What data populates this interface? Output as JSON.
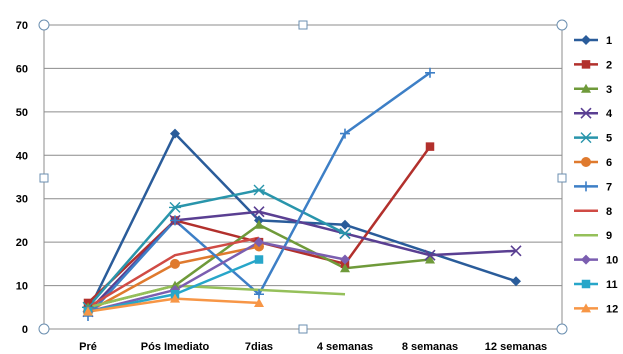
{
  "chart_data": {
    "type": "line",
    "title": "",
    "xlabel": "",
    "ylabel": "",
    "categories": [
      "Pré",
      "Pós Imediato",
      "7dias",
      "4 semanas",
      "8 semanas",
      "12 semanas"
    ],
    "ylim": [
      0,
      70
    ],
    "yticks": [
      "0",
      "10",
      "20",
      "30",
      "40",
      "50",
      "60",
      "70"
    ],
    "grid": true,
    "legend_position": "right",
    "series": [
      {
        "name": "1",
        "color": "#2a5c9a",
        "marker": "diamond",
        "values": [
          4,
          45,
          25,
          24,
          null,
          11
        ]
      },
      {
        "name": "2",
        "color": "#b2302c",
        "marker": "square",
        "values": [
          6,
          25,
          20,
          15,
          42,
          null
        ]
      },
      {
        "name": "3",
        "color": "#6f9a3a",
        "marker": "triangle",
        "values": [
          5,
          10,
          24,
          14,
          16,
          null
        ]
      },
      {
        "name": "4",
        "color": "#5a3f92",
        "marker": "x",
        "values": [
          4,
          25,
          27,
          22,
          17,
          18
        ]
      },
      {
        "name": "5",
        "color": "#2995ab",
        "marker": "star",
        "values": [
          5,
          28,
          32,
          22,
          null,
          null
        ]
      },
      {
        "name": "6",
        "color": "#df7a2e",
        "marker": "circle",
        "values": [
          4,
          15,
          19,
          null,
          null,
          null
        ]
      },
      {
        "name": "7",
        "color": "#3d7fc6",
        "marker": "plus",
        "values": [
          3,
          25,
          8,
          45,
          59,
          null
        ]
      },
      {
        "name": "8",
        "color": "#d04b45",
        "marker": "none",
        "values": [
          5,
          17,
          21,
          null,
          null,
          null
        ]
      },
      {
        "name": "9",
        "color": "#95c05a",
        "marker": "none",
        "values": [
          5,
          10,
          9,
          8,
          null,
          null
        ]
      },
      {
        "name": "10",
        "color": "#7b5eb0",
        "marker": "diamond",
        "values": [
          4,
          9,
          20,
          16,
          null,
          null
        ]
      },
      {
        "name": "11",
        "color": "#27a6c9",
        "marker": "square",
        "values": [
          4,
          8,
          16,
          null,
          null,
          null
        ]
      },
      {
        "name": "12",
        "color": "#f79646",
        "marker": "triangle",
        "values": [
          4,
          7,
          6,
          null,
          null,
          null
        ]
      }
    ]
  }
}
